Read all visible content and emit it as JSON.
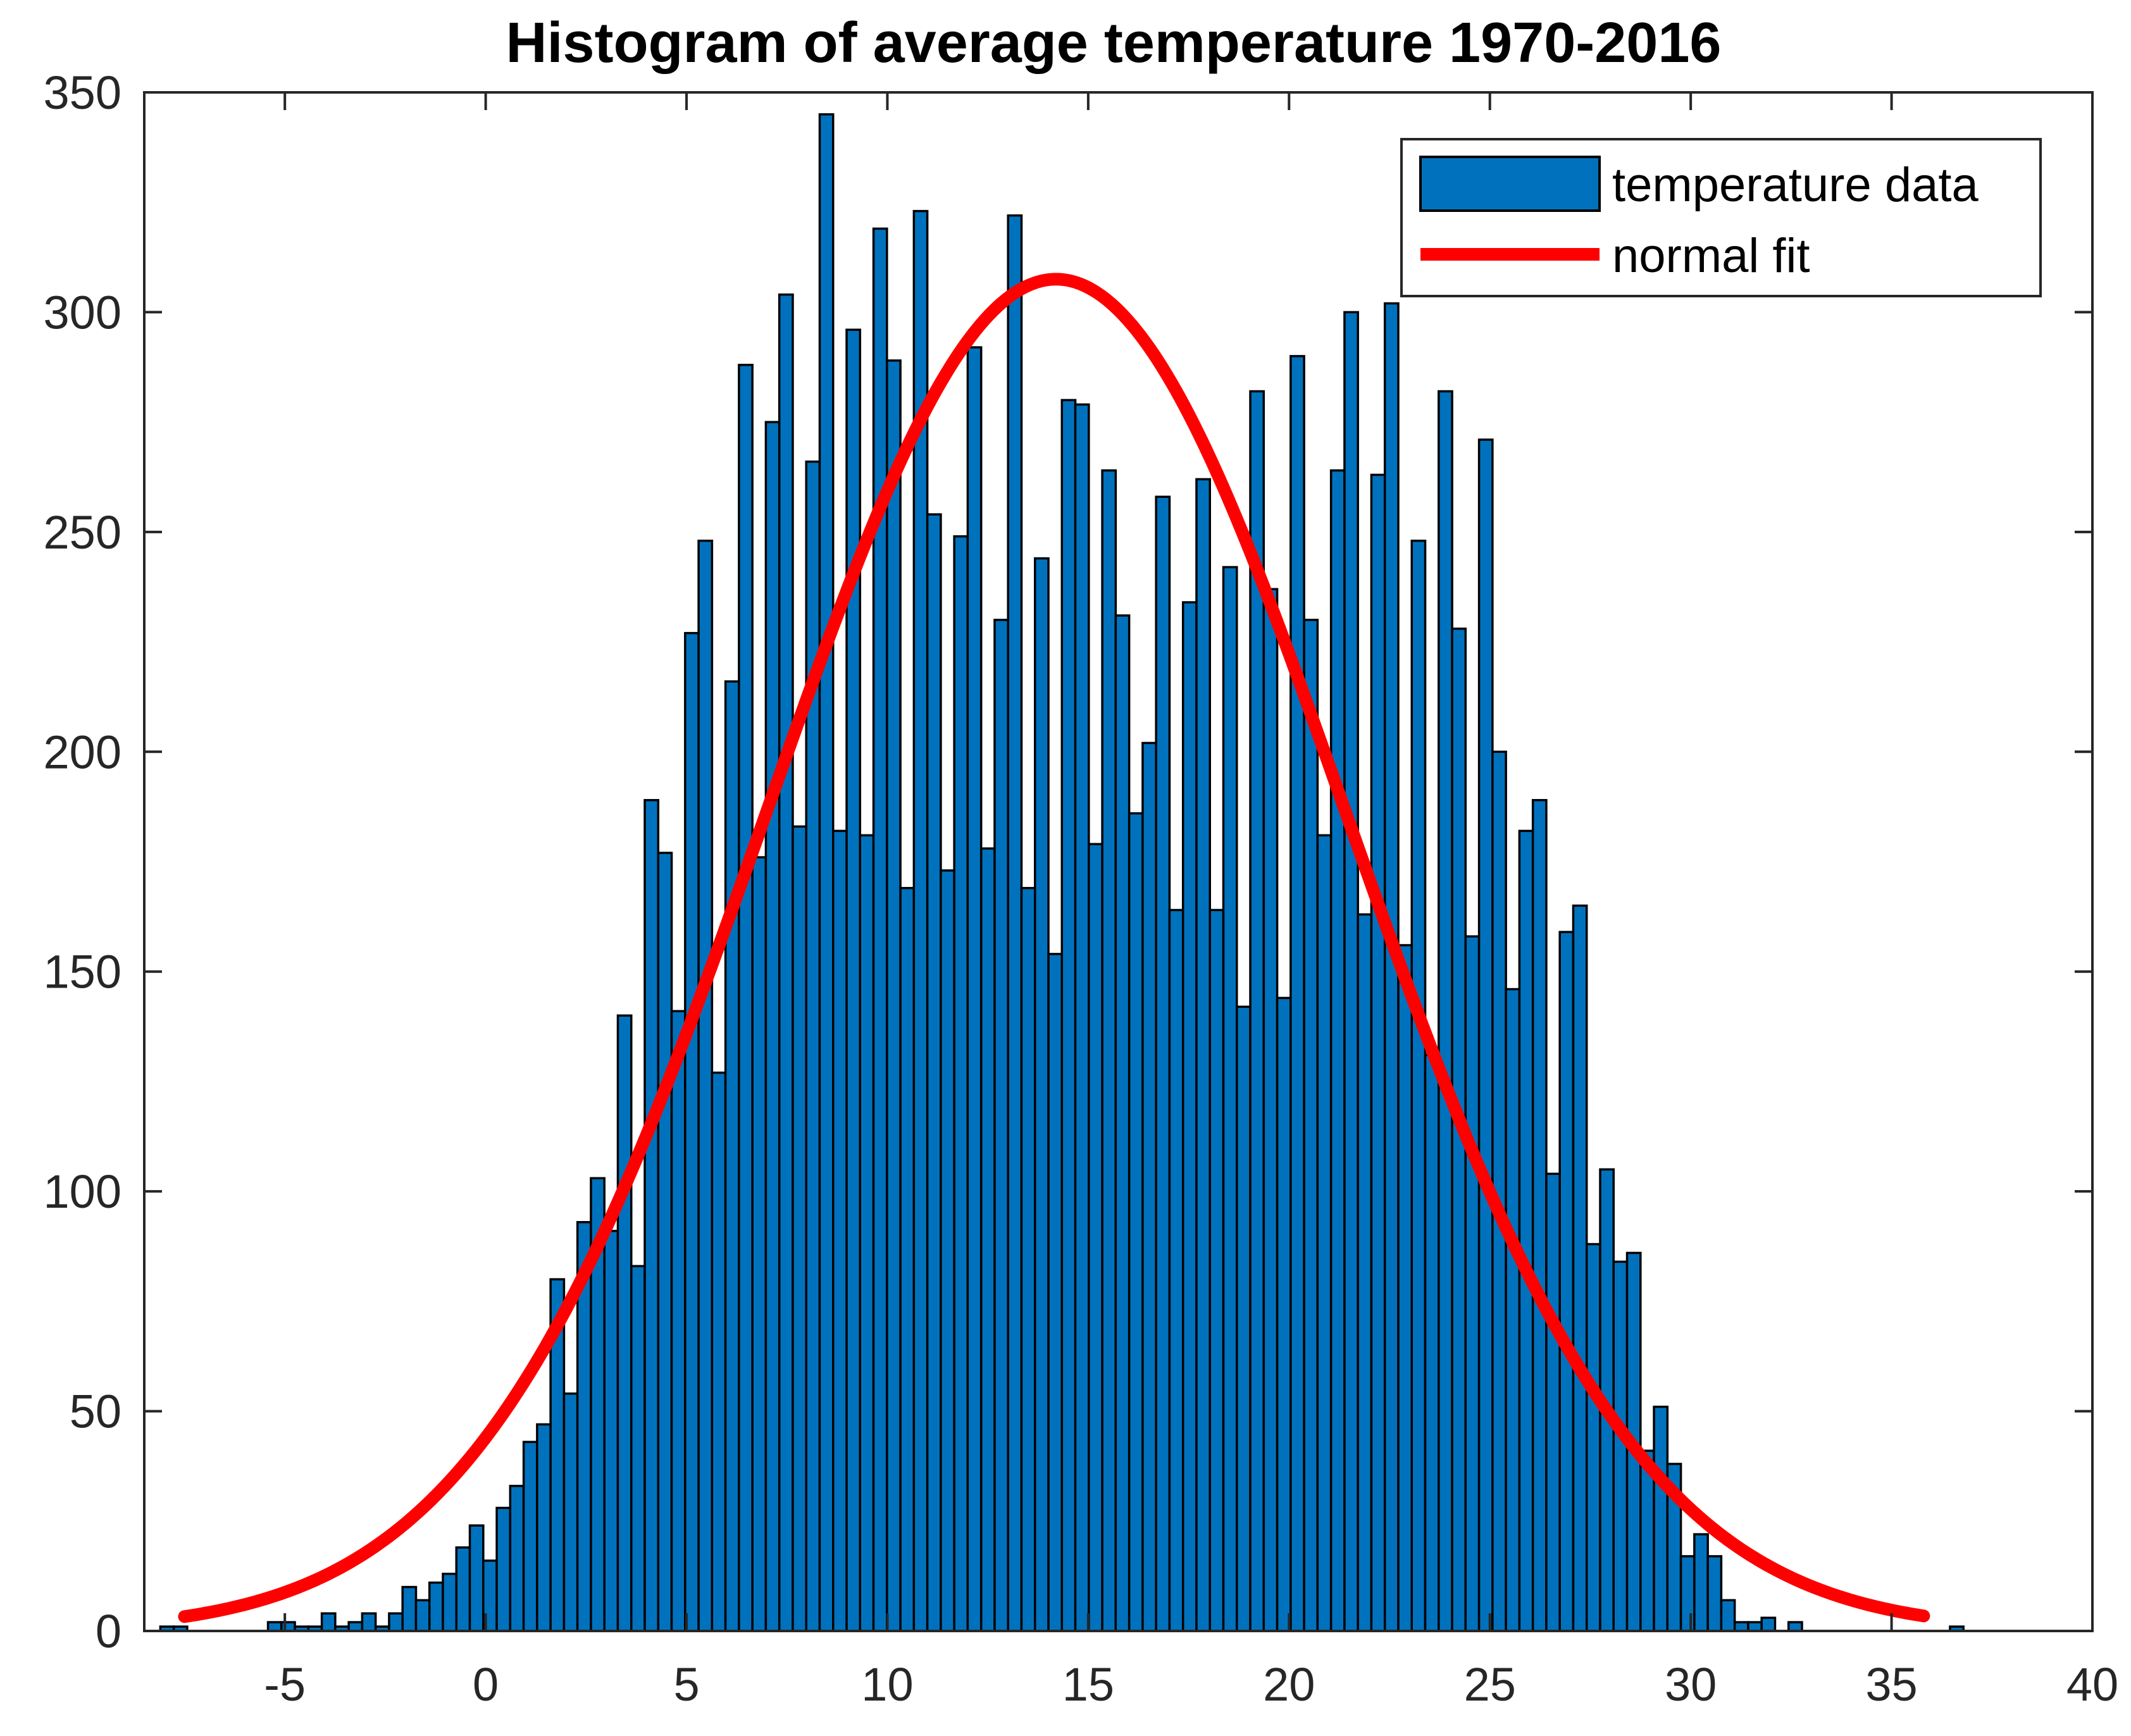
{
  "chart_data": {
    "type": "bar",
    "title": "Histogram of average temperature 1970-2016",
    "xlabel": "",
    "ylabel": "",
    "xlim": [
      -8.5,
      40
    ],
    "ylim": [
      0,
      350
    ],
    "xticks": [
      -5,
      0,
      5,
      10,
      15,
      20,
      25,
      30,
      35,
      40
    ],
    "xtick_labels": [
      "-5",
      "0",
      "5",
      "10",
      "15",
      "20",
      "25",
      "30",
      "35",
      "40"
    ],
    "yticks": [
      0,
      50,
      100,
      150,
      200,
      250,
      300,
      350
    ],
    "ytick_labels": [
      "0",
      "50",
      "100",
      "150",
      "200",
      "250",
      "300",
      "350"
    ],
    "grid": false,
    "legend_position": "top-right",
    "colors": {
      "bar_fill": "#0072BD",
      "bar_edge": "#000000",
      "fit_line": "#FF0000",
      "axes": "#262626"
    },
    "series": [
      {
        "name": "temperature data",
        "type": "histogram",
        "bin_start": -8.1,
        "bin_width": 0.335,
        "counts": [
          1,
          1,
          0,
          0,
          0,
          0,
          0,
          0,
          2,
          2,
          1,
          1,
          4,
          1,
          2,
          4,
          1,
          4,
          10,
          7,
          11,
          13,
          19,
          24,
          16,
          28,
          33,
          43,
          47,
          80,
          54,
          93,
          103,
          91,
          140,
          83,
          189,
          177,
          141,
          227,
          248,
          127,
          216,
          288,
          176,
          275,
          304,
          183,
          266,
          345,
          182,
          296,
          181,
          319,
          289,
          169,
          323,
          254,
          173,
          249,
          292,
          178,
          230,
          322,
          169,
          244,
          154,
          280,
          279,
          179,
          264,
          231,
          186,
          202,
          258,
          164,
          234,
          262,
          164,
          242,
          142,
          282,
          237,
          144,
          290,
          230,
          181,
          264,
          300,
          163,
          263,
          302,
          156,
          248,
          131,
          282,
          228,
          158,
          271,
          200,
          146,
          182,
          189,
          104,
          159,
          165,
          88,
          105,
          84,
          86,
          41,
          51,
          38,
          17,
          22,
          17,
          7,
          2,
          2,
          3,
          0,
          2,
          0,
          0,
          0,
          0,
          0,
          0,
          0,
          0,
          0,
          0,
          0,
          1
        ]
      },
      {
        "name": "normal fit",
        "type": "line",
        "mean": 14.2,
        "std": 7.2,
        "peak": 307.5,
        "x_range": [
          -7.5,
          35.8
        ]
      }
    ]
  }
}
